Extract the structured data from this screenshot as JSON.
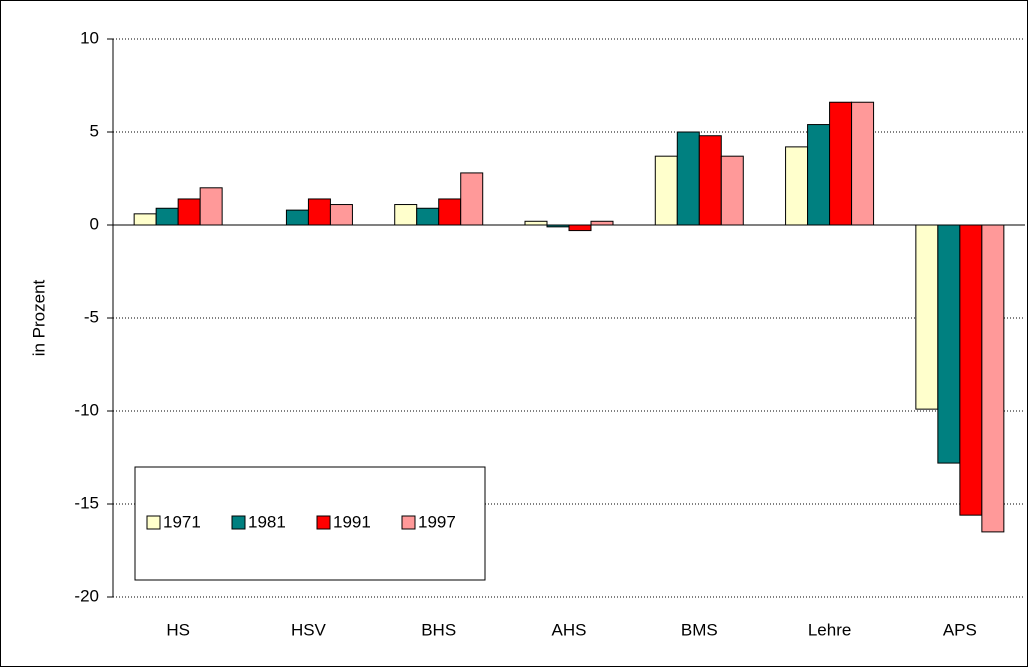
{
  "chart_data": {
    "type": "bar",
    "y_label": "in Prozent",
    "categories": [
      "HS",
      "HSV",
      "BHS",
      "AHS",
      "BMS",
      "Lehre",
      "APS"
    ],
    "series": [
      {
        "name": "1971",
        "color": "#ffffcc",
        "values": [
          0.6,
          null,
          1.1,
          0.2,
          3.7,
          4.2,
          -9.9
        ]
      },
      {
        "name": "1981",
        "color": "#008080",
        "values": [
          0.9,
          0.8,
          0.9,
          -0.1,
          5.0,
          5.4,
          -12.8
        ]
      },
      {
        "name": "1991",
        "color": "#ff0000",
        "values": [
          1.4,
          1.4,
          1.4,
          -0.3,
          4.8,
          6.6,
          -15.6
        ]
      },
      {
        "name": "1997",
        "color": "#ff9999",
        "values": [
          2.0,
          1.1,
          2.8,
          0.2,
          3.7,
          6.6,
          -16.5
        ]
      }
    ],
    "ylim": [
      -20,
      10
    ],
    "yticks": [
      -20,
      -15,
      -10,
      -5,
      0,
      5,
      10
    ],
    "grid": true,
    "legend": "lower-left"
  }
}
